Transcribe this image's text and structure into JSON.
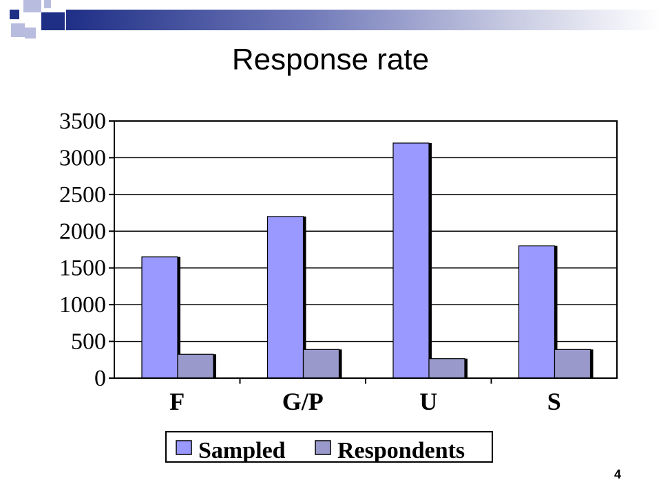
{
  "slide": {
    "title": "Response rate",
    "page_number": "4"
  },
  "colors": {
    "band_dark": "#1f2f86",
    "band_light": "#c8cbe2",
    "deco_navy": "#1f2f86",
    "deco_lavender": "#b8bde0"
  },
  "chart_data": {
    "type": "bar",
    "categories": [
      "F",
      "G/P",
      "U",
      "S"
    ],
    "series": [
      {
        "name": "Sampled",
        "values": [
          1650,
          2200,
          3200,
          1800
        ],
        "color": "#9999ff"
      },
      {
        "name": "Respondents",
        "values": [
          325,
          390,
          265,
          390
        ],
        "color": "#9999cc"
      }
    ],
    "ylim": [
      0,
      3500
    ],
    "yticks": [
      "0",
      "500",
      "1000",
      "1500",
      "2000",
      "2500",
      "3000",
      "3500"
    ],
    "grid": true,
    "legend_position": "bottom"
  }
}
